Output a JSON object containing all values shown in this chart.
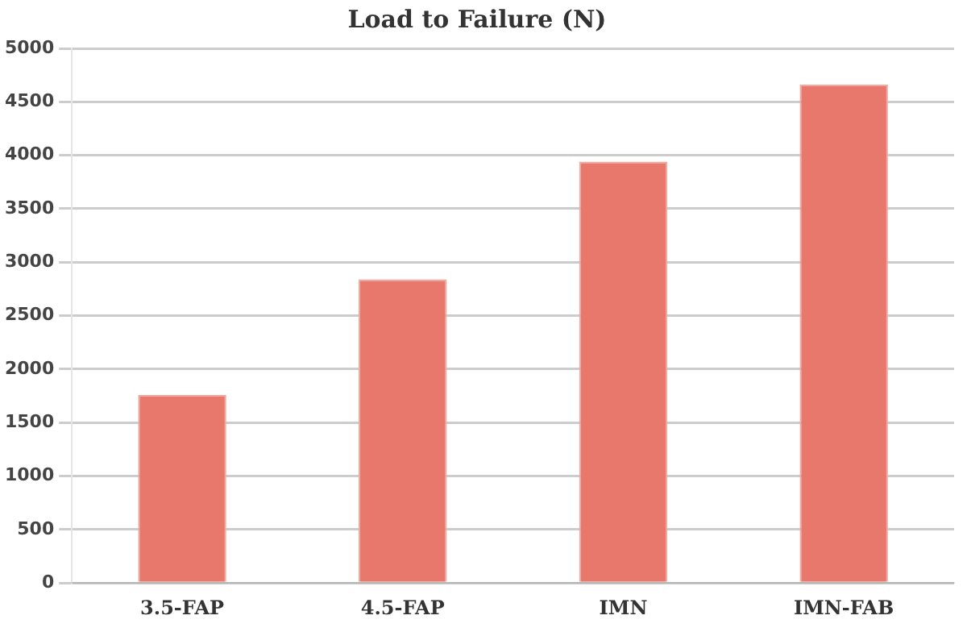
{
  "chart_data": {
    "type": "bar",
    "title": "Load to Failure (N)",
    "categories": [
      "3.5-FAP",
      "4.5-FAP",
      "IMN",
      "IMN-FAB"
    ],
    "values": [
      1760,
      2840,
      3940,
      4660
    ],
    "color": "#e8776c",
    "ylim": [
      0,
      5000
    ],
    "yticks": [
      0,
      500,
      1000,
      1500,
      2000,
      2500,
      3000,
      3500,
      4000,
      4500,
      5000
    ],
    "grid": "y",
    "legend": false
  }
}
